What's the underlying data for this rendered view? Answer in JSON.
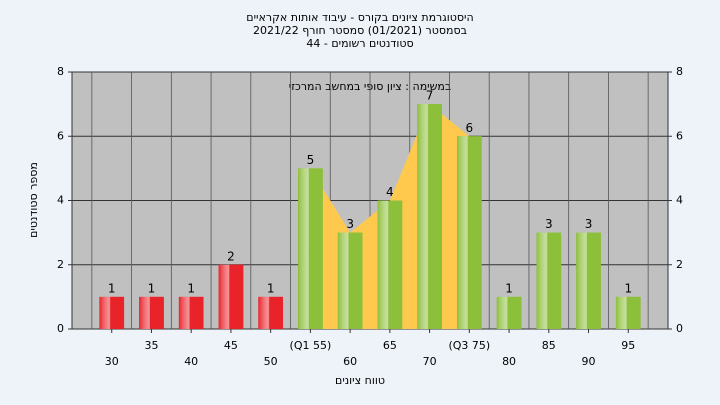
{
  "chart_data": {
    "type": "bar",
    "title": "היסטוגרמת ציונים בקורס - עיבוד אותות אקראיים",
    "subtitle": "בסמסטר  (01/2021)  סמסטר חורף  2021/22",
    "subtitle2": "סטודנטים רשומים - 44",
    "annotation": "במשימה : ציון סופי במחשב המרכזי",
    "x_label": "טווח ציונים",
    "y_label": "מספר סטודנטים",
    "categories": [
      "30",
      "35",
      "40",
      "45",
      "50",
      "(Q1 55)",
      "60",
      "65",
      "70",
      "(Q3 75)",
      "80",
      "85",
      "90",
      "95"
    ],
    "values": [
      1,
      1,
      1,
      2,
      1,
      5,
      3,
      4,
      7,
      6,
      1,
      3,
      3,
      1
    ],
    "colors": [
      "#e8232a",
      "#e8232a",
      "#e8232a",
      "#e8232a",
      "#e8232a",
      "#8cbf3a",
      "#8cbf3a",
      "#8cbf3a",
      "#8cbf3a",
      "#8cbf3a",
      "#8cbf3a",
      "#8cbf3a",
      "#8cbf3a",
      "#8cbf3a"
    ],
    "quartile_range": [
      5,
      9
    ],
    "quartile_color": "#ffc94d",
    "ylim": [
      0,
      8
    ],
    "yticks": [
      0,
      2,
      4,
      6,
      8
    ],
    "y2lim": [
      0,
      8
    ],
    "y2ticks": [
      0,
      2,
      4,
      6,
      8
    ],
    "grid": true
  }
}
